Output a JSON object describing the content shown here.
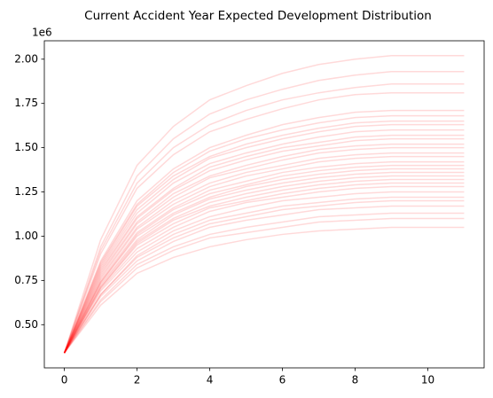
{
  "chart_data": {
    "type": "line",
    "title": "Current Accident Year Expected Development Distribution",
    "y_offset_label": "1e6",
    "x": [
      0,
      1,
      2,
      3,
      4,
      5,
      6,
      7,
      8,
      9,
      10,
      11
    ],
    "xlim": [
      -0.55,
      11.55
    ],
    "xticks": [
      0,
      2,
      4,
      6,
      8,
      10
    ],
    "ylim": [
      0.256,
      2.104
    ],
    "yticks": [
      {
        "value": 0.5,
        "label": "0.50"
      },
      {
        "value": 0.75,
        "label": "0.75"
      },
      {
        "value": 1.0,
        "label": "1.00"
      },
      {
        "value": 1.25,
        "label": "1.25"
      },
      {
        "value": 1.5,
        "label": "1.50"
      },
      {
        "value": 1.75,
        "label": "1.75"
      },
      {
        "value": 2.0,
        "label": "2.00"
      }
    ],
    "alpha": 0.15,
    "grid": false,
    "series": [
      {
        "color": "#ff0000",
        "values": [
          0.34,
          0.98,
          1.4,
          1.62,
          1.77,
          1.85,
          1.92,
          1.97,
          2.0,
          2.02,
          2.02,
          2.02
        ]
      },
      {
        "color": "#ff0000",
        "values": [
          0.34,
          0.94,
          1.34,
          1.55,
          1.69,
          1.77,
          1.83,
          1.88,
          1.91,
          1.93,
          1.93,
          1.93
        ]
      },
      {
        "color": "#ff0000",
        "values": [
          0.34,
          0.92,
          1.3,
          1.5,
          1.63,
          1.71,
          1.77,
          1.81,
          1.84,
          1.86,
          1.86,
          1.86
        ]
      },
      {
        "color": "#ff0000",
        "values": [
          0.34,
          0.9,
          1.27,
          1.46,
          1.59,
          1.66,
          1.72,
          1.77,
          1.8,
          1.81,
          1.81,
          1.81
        ]
      },
      {
        "color": "#ff0000",
        "values": [
          0.34,
          0.86,
          1.2,
          1.38,
          1.5,
          1.57,
          1.63,
          1.67,
          1.7,
          1.71,
          1.71,
          1.71
        ]
      },
      {
        "color": "#ff0000",
        "values": [
          0.34,
          0.85,
          1.18,
          1.36,
          1.48,
          1.55,
          1.6,
          1.64,
          1.67,
          1.68,
          1.68,
          1.68
        ]
      },
      {
        "color": "#ff0000",
        "values": [
          0.34,
          0.84,
          1.17,
          1.34,
          1.45,
          1.52,
          1.57,
          1.61,
          1.64,
          1.65,
          1.65,
          1.65
        ]
      },
      {
        "color": "#ff0000",
        "values": [
          0.34,
          0.83,
          1.15,
          1.32,
          1.44,
          1.5,
          1.55,
          1.59,
          1.62,
          1.63,
          1.63,
          1.63
        ]
      },
      {
        "color": "#ff0000",
        "values": [
          0.34,
          0.82,
          1.13,
          1.3,
          1.41,
          1.47,
          1.52,
          1.56,
          1.59,
          1.6,
          1.6,
          1.6
        ]
      },
      {
        "color": "#ff0000",
        "values": [
          0.34,
          0.81,
          1.11,
          1.27,
          1.39,
          1.45,
          1.5,
          1.53,
          1.56,
          1.57,
          1.57,
          1.57
        ]
      },
      {
        "color": "#ff0000",
        "values": [
          0.34,
          0.8,
          1.1,
          1.26,
          1.37,
          1.43,
          1.48,
          1.51,
          1.54,
          1.55,
          1.55,
          1.55
        ]
      },
      {
        "color": "#ff0000",
        "values": [
          0.34,
          0.79,
          1.08,
          1.24,
          1.34,
          1.4,
          1.45,
          1.49,
          1.51,
          1.52,
          1.52,
          1.52
        ]
      },
      {
        "color": "#ff0000",
        "values": [
          0.34,
          0.78,
          1.07,
          1.22,
          1.33,
          1.38,
          1.43,
          1.47,
          1.49,
          1.5,
          1.5,
          1.5
        ]
      },
      {
        "color": "#ff0000",
        "values": [
          0.34,
          0.77,
          1.05,
          1.2,
          1.3,
          1.36,
          1.4,
          1.44,
          1.46,
          1.47,
          1.47,
          1.47
        ]
      },
      {
        "color": "#ff0000",
        "values": [
          0.34,
          0.76,
          1.04,
          1.18,
          1.28,
          1.34,
          1.38,
          1.42,
          1.44,
          1.45,
          1.45,
          1.45
        ]
      },
      {
        "color": "#ff0000",
        "values": [
          0.34,
          0.75,
          1.02,
          1.16,
          1.26,
          1.31,
          1.36,
          1.39,
          1.41,
          1.42,
          1.42,
          1.42
        ]
      },
      {
        "color": "#ff0000",
        "values": [
          0.34,
          0.74,
          1.01,
          1.15,
          1.24,
          1.29,
          1.34,
          1.37,
          1.39,
          1.4,
          1.4,
          1.4
        ]
      },
      {
        "color": "#ff0000",
        "values": [
          0.34,
          0.74,
          1.0,
          1.13,
          1.22,
          1.28,
          1.32,
          1.35,
          1.37,
          1.38,
          1.38,
          1.38
        ]
      },
      {
        "color": "#ff0000",
        "values": [
          0.34,
          0.73,
          0.98,
          1.12,
          1.21,
          1.26,
          1.3,
          1.33,
          1.35,
          1.36,
          1.36,
          1.36
        ]
      },
      {
        "color": "#ff0000",
        "values": [
          0.34,
          0.72,
          0.97,
          1.1,
          1.19,
          1.24,
          1.28,
          1.31,
          1.33,
          1.34,
          1.34,
          1.34
        ]
      },
      {
        "color": "#ff0000",
        "values": [
          0.34,
          0.71,
          0.96,
          1.09,
          1.17,
          1.22,
          1.26,
          1.29,
          1.31,
          1.32,
          1.32,
          1.32
        ]
      },
      {
        "color": "#ff0000",
        "values": [
          0.34,
          0.71,
          0.95,
          1.07,
          1.16,
          1.2,
          1.24,
          1.27,
          1.29,
          1.3,
          1.3,
          1.3
        ]
      },
      {
        "color": "#ff0000",
        "values": [
          0.34,
          0.7,
          0.93,
          1.05,
          1.14,
          1.19,
          1.22,
          1.25,
          1.27,
          1.28,
          1.28,
          1.28
        ]
      },
      {
        "color": "#ff0000",
        "values": [
          0.34,
          0.69,
          0.91,
          1.03,
          1.11,
          1.16,
          1.2,
          1.22,
          1.24,
          1.25,
          1.25,
          1.25
        ]
      },
      {
        "color": "#ff0000",
        "values": [
          0.34,
          0.67,
          0.89,
          1.01,
          1.09,
          1.13,
          1.17,
          1.19,
          1.21,
          1.22,
          1.22,
          1.22
        ]
      },
      {
        "color": "#ff0000",
        "values": [
          0.34,
          0.67,
          0.88,
          0.99,
          1.07,
          1.11,
          1.15,
          1.17,
          1.19,
          1.2,
          1.2,
          1.2
        ]
      },
      {
        "color": "#ff0000",
        "values": [
          0.34,
          0.66,
          0.86,
          0.97,
          1.05,
          1.09,
          1.12,
          1.15,
          1.16,
          1.17,
          1.17,
          1.17
        ]
      },
      {
        "color": "#ff0000",
        "values": [
          0.34,
          0.64,
          0.84,
          0.94,
          1.01,
          1.05,
          1.08,
          1.11,
          1.12,
          1.13,
          1.13,
          1.13
        ]
      },
      {
        "color": "#ff0000",
        "values": [
          0.34,
          0.63,
          0.82,
          0.92,
          0.99,
          1.02,
          1.05,
          1.08,
          1.09,
          1.1,
          1.1,
          1.1
        ]
      },
      {
        "color": "#ff0000",
        "values": [
          0.34,
          0.61,
          0.79,
          0.88,
          0.94,
          0.98,
          1.01,
          1.03,
          1.04,
          1.05,
          1.05,
          1.05
        ]
      }
    ]
  }
}
